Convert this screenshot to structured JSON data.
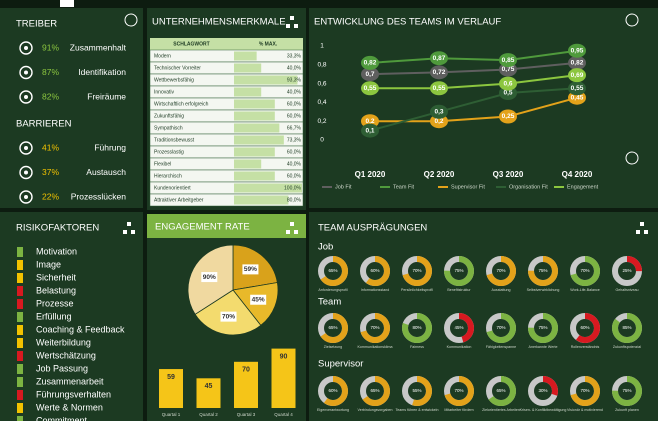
{
  "treiber": {
    "title": "TREIBER",
    "items": [
      {
        "value": 91,
        "label": "91%",
        "name": "Zusammenhalt"
      },
      {
        "value": 87,
        "label": "87%",
        "name": "Identifikation"
      },
      {
        "value": 82,
        "label": "82%",
        "name": "Freiräume"
      }
    ]
  },
  "barrieren": {
    "title": "BARRIEREN",
    "items": [
      {
        "value": 41,
        "label": "41%",
        "name": "Führung"
      },
      {
        "value": 37,
        "label": "37%",
        "name": "Austausch"
      },
      {
        "value": 22,
        "label": "22%",
        "name": "Prozesslücken"
      }
    ]
  },
  "merkmale": {
    "title": "UNTERNEHMENSMERKMALE",
    "headers": [
      "SCHLAGWORT",
      "% MAX."
    ],
    "rows": [
      {
        "name": "Modern",
        "value": 33.3,
        "label": "33,3%"
      },
      {
        "name": "Technischer Vorreiter",
        "value": 40.0,
        "label": "40,0%"
      },
      {
        "name": "Wettbewerbsfähig",
        "value": 93.3,
        "label": "93,3%"
      },
      {
        "name": "Innovativ",
        "value": 40.0,
        "label": "40,0%"
      },
      {
        "name": "Wirtschaftlich erfolgreich",
        "value": 60.0,
        "label": "60,0%"
      },
      {
        "name": "Zukunftsfähig",
        "value": 60.0,
        "label": "60,0%"
      },
      {
        "name": "Sympathisch",
        "value": 66.7,
        "label": "66,7%"
      },
      {
        "name": "Traditionsbewusst",
        "value": 73.3,
        "label": "73,3%"
      },
      {
        "name": "Prozesslastig",
        "value": 60.0,
        "label": "60,0%"
      },
      {
        "name": "Flexibel",
        "value": 40.0,
        "label": "40,0%"
      },
      {
        "name": "Hierarchisch",
        "value": 60.0,
        "label": "60,0%"
      },
      {
        "name": "Kundenorientiert",
        "value": 100.0,
        "label": "100,0%"
      },
      {
        "name": "Attraktiver Arbeitgeber",
        "value": 80.0,
        "label": "80,0%"
      }
    ]
  },
  "chart_data": [
    {
      "type": "line",
      "title": "ENTWICKLUNG DES TEAMS IM VERLAUF",
      "categories": [
        "Q1 2020",
        "Q2 2020",
        "Q3 2020",
        "Q4 2020"
      ],
      "ylim": [
        0,
        1
      ],
      "yticks": [
        0,
        {
          "value": 0.2,
          "label": "0,2"
        },
        {
          "value": 0.4,
          "label": "0,4"
        },
        {
          "value": 0.6,
          "label": "0,6"
        },
        {
          "value": 0.8,
          "label": "0,8"
        },
        1
      ],
      "legend": "bottom",
      "series": [
        {
          "name": "Job Fit",
          "color": "#5f5f5f",
          "values": [
            0.7,
            0.72,
            0.75,
            0.82
          ],
          "value_labels": [
            "0,7",
            "0,72",
            "0,75",
            "0,82"
          ]
        },
        {
          "name": "Team Fit",
          "color": "#4f9a3c",
          "values": [
            0.82,
            0.87,
            0.85,
            0.95
          ],
          "value_labels": [
            "0,82",
            "0,87",
            "0,85",
            "0,95"
          ]
        },
        {
          "name": "Supervisor Fit",
          "color": "#e3a21a",
          "values": [
            0.2,
            0.2,
            0.25,
            0.45
          ],
          "value_labels": [
            "0,2",
            "0,2",
            "0,25",
            "0,45"
          ]
        },
        {
          "name": "Organisation Fit",
          "color": "#2e5e34",
          "values": [
            0.1,
            0.3,
            0.5,
            0.55
          ],
          "value_labels": [
            "0,1",
            "0,3",
            "0,5",
            "0,55"
          ]
        },
        {
          "name": "Engagement",
          "color": "#8cc63f",
          "values": [
            0.55,
            0.55,
            0.6,
            0.69
          ],
          "value_labels": [
            "0,55",
            "0,55",
            "0,6",
            "0,69"
          ]
        }
      ]
    },
    {
      "type": "pie",
      "title": "ENGAGEMENT RATE",
      "values": [
        59,
        45,
        70,
        90
      ],
      "value_labels": [
        "59%",
        "45%",
        "70%",
        "90%"
      ],
      "colors": [
        "#d9a21b",
        "#e8b92a",
        "#f3db6e",
        "#f0d9a0"
      ]
    },
    {
      "type": "bar",
      "categories": [
        "Quartal 1",
        "Quartal 2",
        "Quartal 3",
        "Quartal 4"
      ],
      "values": [
        59,
        45,
        70,
        90
      ],
      "color": "#f5c518",
      "ylim": [
        0,
        100
      ]
    }
  ],
  "risiko": {
    "title": "RISIKOFAKTOREN",
    "items": [
      {
        "name": "Motivation",
        "color": "#7cb342"
      },
      {
        "name": "Image",
        "color": "#f2c200"
      },
      {
        "name": "Sicherheit",
        "color": "#f2c200"
      },
      {
        "name": "Belastung",
        "color": "#d71920"
      },
      {
        "name": "Prozesse",
        "color": "#d71920"
      },
      {
        "name": "Erfüllung",
        "color": "#7cb342"
      },
      {
        "name": "Coaching & Feedback",
        "color": "#f2c200"
      },
      {
        "name": "Weiterbildung",
        "color": "#f2c200"
      },
      {
        "name": "Wertschätzung",
        "color": "#d71920"
      },
      {
        "name": "Job Passung",
        "color": "#7cb342"
      },
      {
        "name": "Zusammenarbeit",
        "color": "#7cb342"
      },
      {
        "name": "Führungsverhalten",
        "color": "#d71920"
      },
      {
        "name": "Werte & Normen",
        "color": "#f2c200"
      },
      {
        "name": "Commitment",
        "color": "#7cb342"
      }
    ]
  },
  "team": {
    "title": "TEAM AUSPRÄGUNGEN",
    "groups": [
      {
        "name": "Job",
        "items": [
          {
            "name": "Anforderungsprofil",
            "value": 65,
            "label": "65%",
            "color": "#e3a21a"
          },
          {
            "name": "Informationsstand",
            "value": 60,
            "label": "60%",
            "color": "#e3a21a"
          },
          {
            "name": "Persönlichkeitsprofil",
            "value": 70,
            "label": "70%",
            "color": "#e3a21a"
          },
          {
            "name": "Benefitstruktur",
            "value": 75,
            "label": "75%",
            "color": "#7cb342"
          },
          {
            "name": "Ausstattung",
            "value": 70,
            "label": "70%",
            "color": "#e3a21a"
          },
          {
            "name": "Selbstverwirklichung",
            "value": 75,
            "label": "75%",
            "color": "#e3a21a"
          },
          {
            "name": "Work-Life-Balance",
            "value": 70,
            "label": "70%",
            "color": "#7cb342"
          },
          {
            "name": "Gehaltsniveau",
            "value": 25,
            "label": "25%",
            "color": "#d71920"
          }
        ]
      },
      {
        "name": "Team",
        "items": [
          {
            "name": "Zielsetzung",
            "value": 65,
            "label": "65%",
            "color": "#e3a21a"
          },
          {
            "name": "Kommunikationsklima",
            "value": 70,
            "label": "70%",
            "color": "#e3a21a"
          },
          {
            "name": "Fairness",
            "value": 80,
            "label": "80%",
            "color": "#7cb342"
          },
          {
            "name": "Kommunikation",
            "value": 45,
            "label": "45%",
            "color": "#d71920"
          },
          {
            "name": "Fähigkeitenspanne",
            "value": 70,
            "label": "70%",
            "color": "#7cb342"
          },
          {
            "name": "Anerkannte Werte",
            "value": 75,
            "label": "75%",
            "color": "#7cb342"
          },
          {
            "name": "Rollenverständnis",
            "value": 60,
            "label": "60%",
            "color": "#d71920"
          },
          {
            "name": "Zukunftspotenzial",
            "value": 85,
            "label": "85%",
            "color": "#7cb342"
          }
        ]
      },
      {
        "name": "Supervisor",
        "items": [
          {
            "name": "Eigenverantwortung",
            "value": 60,
            "label": "60%",
            "color": "#e3a21a"
          },
          {
            "name": "Verbindungsvorgaben",
            "value": 65,
            "label": "65%",
            "color": "#e3a21a"
          },
          {
            "name": "Teams führen & entwickeln",
            "value": 55,
            "label": "55%",
            "color": "#e3a21a"
          },
          {
            "name": "Mitarbeiter fördern",
            "value": 70,
            "label": "70%",
            "color": "#e3a21a"
          },
          {
            "name": "Zielorientiertes Arbeiten",
            "value": 65,
            "label": "65%",
            "color": "#7cb342"
          },
          {
            "name": "Krisen- & Konfliktbewältigung",
            "value": 30,
            "label": "30%",
            "color": "#d71920"
          },
          {
            "name": "Visionär & motivierend",
            "value": 70,
            "label": "70%",
            "color": "#e3a21a"
          },
          {
            "name": "Zukunft planen",
            "value": 75,
            "label": "75%",
            "color": "#7cb342"
          }
        ]
      }
    ]
  }
}
